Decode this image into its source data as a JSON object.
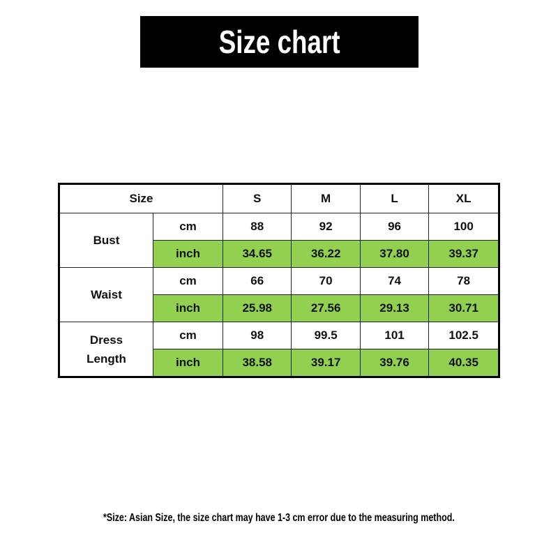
{
  "title": "Size chart",
  "table": {
    "header": {
      "size": "Size",
      "cols": [
        "S",
        "M",
        "L",
        "XL"
      ]
    },
    "groups": [
      {
        "label": "Bust",
        "rows": [
          {
            "unit": "cm",
            "values": [
              "88",
              "92",
              "96",
              "100"
            ]
          },
          {
            "unit": "inch",
            "values": [
              "34.65",
              "36.22",
              "37.80",
              "39.37"
            ]
          }
        ]
      },
      {
        "label": "Waist",
        "rows": [
          {
            "unit": "cm",
            "values": [
              "66",
              "70",
              "74",
              "78"
            ]
          },
          {
            "unit": "inch",
            "values": [
              "25.98",
              "27.56",
              "29.13",
              "30.71"
            ]
          }
        ]
      },
      {
        "label": "Dress Length",
        "label_lines": [
          "Dress",
          "Length"
        ],
        "rows": [
          {
            "unit": "cm",
            "values": [
              "98",
              "99.5",
              "101",
              "102.5"
            ]
          },
          {
            "unit": "inch",
            "values": [
              "38.58",
              "39.17",
              "39.76",
              "40.35"
            ]
          }
        ]
      }
    ]
  },
  "note": "*Size: Asian Size, the size chart may have 1-3 cm error due to the measuring method.",
  "colors": {
    "title_bg": "#000000",
    "inch_row_bg": "#92d050"
  }
}
